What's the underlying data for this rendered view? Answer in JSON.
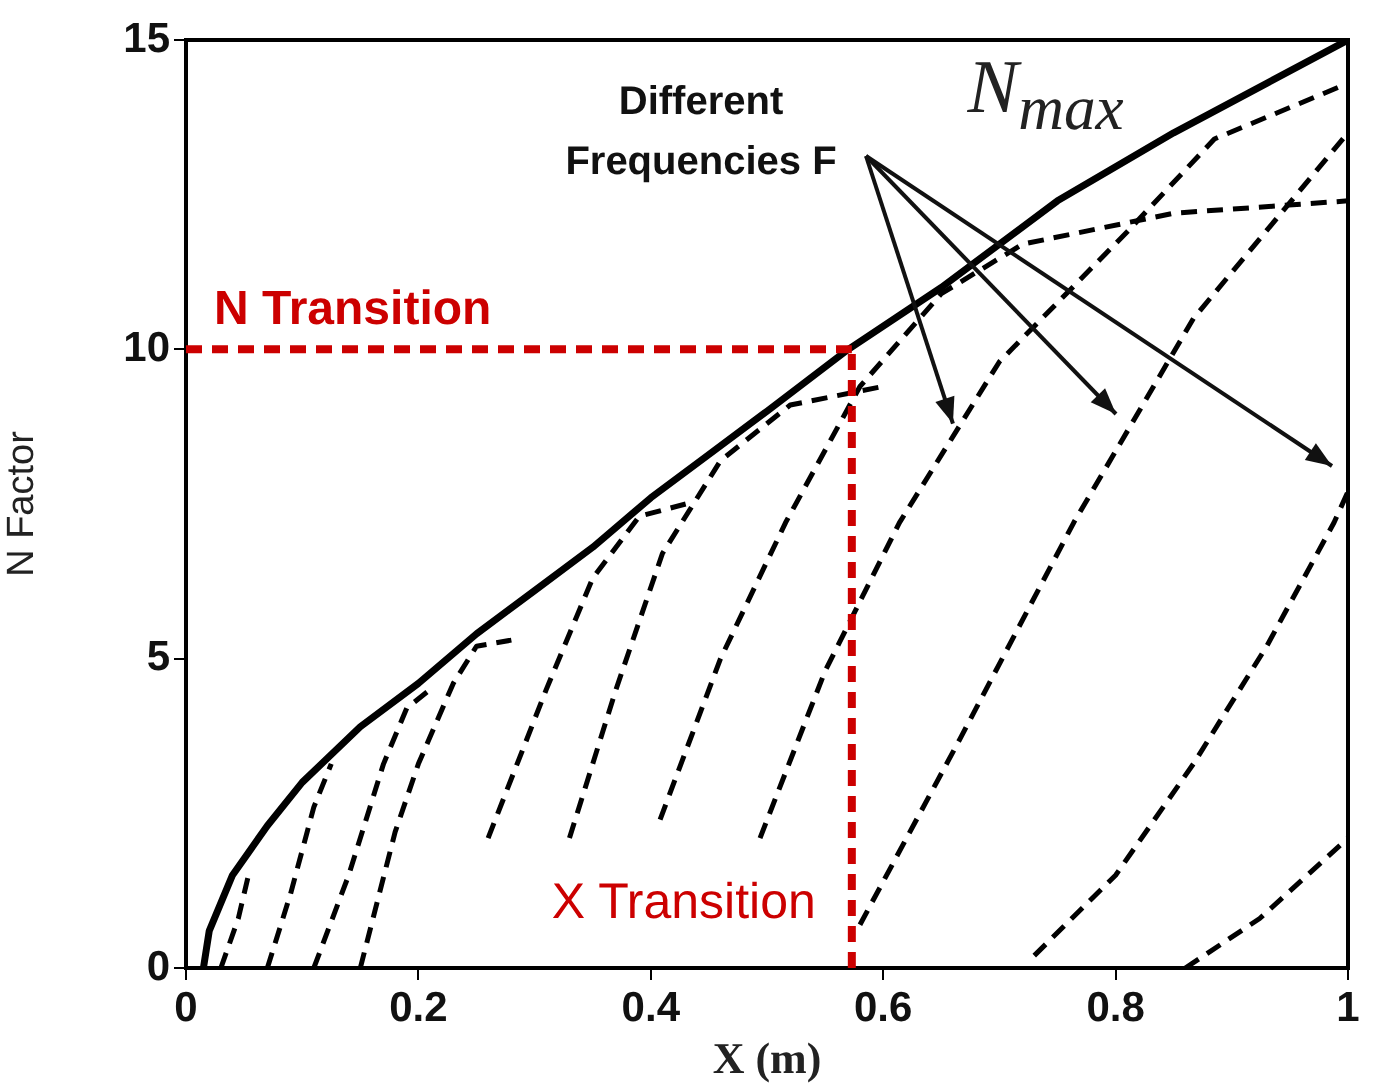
{
  "chart_data": {
    "type": "line",
    "xlabel": "X (m)",
    "ylabel": "N Factor",
    "xlim": [
      0,
      1
    ],
    "ylim": [
      0,
      15
    ],
    "xticks": [
      0,
      0.2,
      0.4,
      0.6,
      0.8,
      1
    ],
    "yticks": [
      0,
      5,
      10,
      15
    ],
    "grid": false,
    "legend": false,
    "marker": "none",
    "annotations": [
      {
        "text": "Different Frequencies F",
        "x": 0.66,
        "y": 8.8
      }
    ],
    "ref_lines": [
      {
        "axis": "y",
        "value": 10,
        "label": "N Transition",
        "color": "#cc0000",
        "line_style": "dashed"
      },
      {
        "axis": "x",
        "value": 0.573,
        "label": "X Transition",
        "color": "#cc0000",
        "line_style": "dashed"
      }
    ],
    "series": [
      {
        "name": "N$_{max}$",
        "color": "#000000",
        "line_style": "solid",
        "x": [
          0.015,
          0.02,
          0.04,
          0.07,
          0.1,
          0.15,
          0.2,
          0.25,
          0.3,
          0.35,
          0.4,
          0.45,
          0.5,
          0.57,
          0.65,
          0.75,
          0.85,
          0.93,
          1.0
        ],
        "values": [
          0,
          0.6,
          1.5,
          2.3,
          3.0,
          3.9,
          4.6,
          5.4,
          6.1,
          6.8,
          7.6,
          8.3,
          9.0,
          10.0,
          11.0,
          12.4,
          13.5,
          14.3,
          15.0
        ]
      },
      {
        "color": "#000000",
        "line_style": "dashed",
        "x": [
          0.03,
          0.045,
          0.055
        ],
        "values": [
          0,
          0.8,
          1.6
        ]
      },
      {
        "color": "#000000",
        "line_style": "dashed",
        "x": [
          0.07,
          0.09,
          0.11,
          0.125
        ],
        "values": [
          0,
          1.2,
          2.6,
          3.3
        ]
      },
      {
        "color": "#000000",
        "line_style": "dashed",
        "x": [
          0.11,
          0.14,
          0.17,
          0.19,
          0.21
        ],
        "values": [
          0,
          1.5,
          3.3,
          4.2,
          4.5
        ]
      },
      {
        "color": "#000000",
        "line_style": "dashed",
        "x": [
          0.15,
          0.18,
          0.2,
          0.23,
          0.25,
          0.28
        ],
        "values": [
          0,
          2.2,
          3.3,
          4.6,
          5.2,
          5.3
        ]
      },
      {
        "color": "#000000",
        "line_style": "dashed",
        "x": [
          0.26,
          0.31,
          0.35,
          0.39,
          0.43
        ],
        "values": [
          2.1,
          4.5,
          6.3,
          7.3,
          7.5
        ]
      },
      {
        "color": "#000000",
        "line_style": "dashed",
        "x": [
          0.33,
          0.37,
          0.41,
          0.46,
          0.52,
          0.6
        ],
        "values": [
          2.1,
          4.5,
          6.7,
          8.2,
          9.1,
          9.4
        ]
      },
      {
        "color": "#000000",
        "line_style": "dashed",
        "x": [
          0.408,
          0.46,
          0.516,
          0.58,
          0.65,
          0.72,
          0.85,
          1.0
        ],
        "values": [
          2.4,
          5.0,
          7.2,
          9.4,
          10.9,
          11.7,
          12.2,
          12.4
        ]
      },
      {
        "color": "#000000",
        "line_style": "dashed",
        "x": [
          0.494,
          0.55,
          0.614,
          0.7,
          0.81,
          0.885,
          1.0
        ],
        "values": [
          2.1,
          4.8,
          7.2,
          9.8,
          11.9,
          13.4,
          14.3
        ]
      },
      {
        "color": "#000000",
        "line_style": "dashed",
        "x": [
          0.58,
          0.666,
          0.764,
          0.867,
          1.0
        ],
        "values": [
          0.7,
          3.7,
          7.2,
          10.5,
          13.5
        ]
      },
      {
        "color": "#000000",
        "line_style": "dashed",
        "x": [
          0.73,
          0.8,
          0.867,
          0.93,
          0.988,
          1.0
        ],
        "values": [
          0.2,
          1.5,
          3.3,
          5.2,
          7.2,
          7.7
        ]
      },
      {
        "color": "#000000",
        "line_style": "dashed",
        "x": [
          0.86,
          0.924,
          1.0
        ],
        "values": [
          0,
          0.8,
          2.1
        ]
      }
    ]
  }
}
